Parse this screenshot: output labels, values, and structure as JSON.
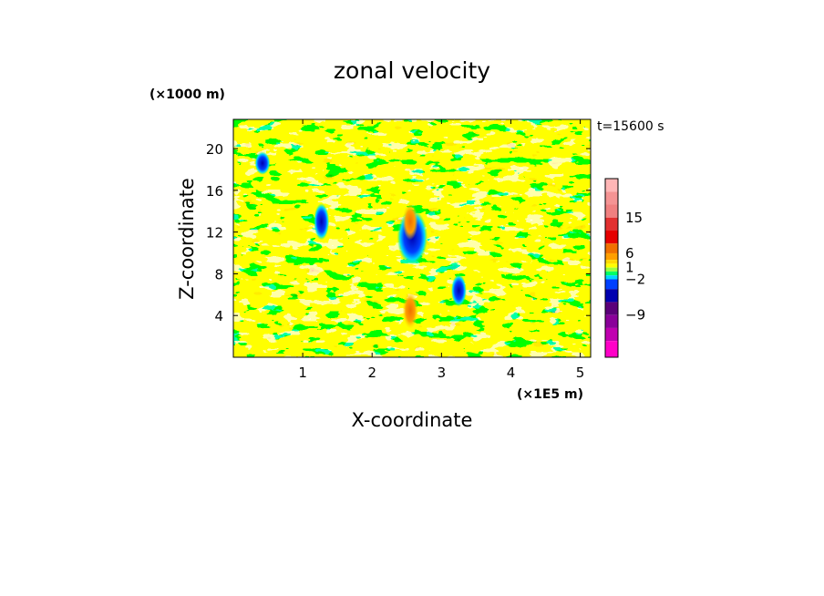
{
  "chart_data": {
    "type": "heatmap",
    "title": "zonal velocity",
    "xlabel": "X-coordinate",
    "ylabel": "Z-coordinate",
    "x_unit": "(×1E5 m)",
    "y_unit": "(×1000 m)",
    "time_label": "t=15600 s",
    "xlim": [
      0,
      5.15
    ],
    "ylim": [
      0,
      22.8
    ],
    "x_ticks": [
      1,
      2,
      3,
      4,
      5
    ],
    "y_ticks": [
      4,
      8,
      12,
      16,
      20
    ],
    "colorbar": {
      "labels": [
        "15",
        "6",
        "1",
        "−2",
        "−9"
      ],
      "label_values": [
        15,
        6,
        1,
        -2,
        -9
      ],
      "levels_top_to_bottom": [
        21,
        18,
        15,
        12,
        9,
        6,
        4,
        2,
        1,
        0,
        -1,
        -2,
        -3,
        -6,
        -9,
        -12,
        -15,
        -18
      ],
      "colors_top_to_bottom": [
        "#ffb6b6",
        "#f59494",
        "#f08080",
        "#e23030",
        "#e50000",
        "#f07000",
        "#ff9f00",
        "#ffd900",
        "#ffff00",
        "#9cff40",
        "#00ff66",
        "#00d6ff",
        "#0040ff",
        "#0000b0",
        "#5b007a",
        "#8a009a",
        "#c000b0",
        "#ff00c8"
      ]
    },
    "field": {
      "base": "#ffff00",
      "features": [
        {
          "name": "main-negative-jet",
          "x": 2.58,
          "z": 11.5,
          "sx": 0.1,
          "sz": 1.2,
          "value": -12
        },
        {
          "name": "lower-negative-core",
          "x": 3.25,
          "z": 6.4,
          "sx": 0.05,
          "sz": 0.7,
          "value": -12
        },
        {
          "name": "left-negative-core",
          "x": 1.27,
          "z": 13.0,
          "sx": 0.05,
          "sz": 0.8,
          "value": -12
        },
        {
          "name": "upper-left-core",
          "x": 0.42,
          "z": 18.6,
          "sx": 0.05,
          "sz": 0.5,
          "value": -12
        },
        {
          "name": "positive-anomaly",
          "x": 2.55,
          "z": 4.5,
          "sx": 0.05,
          "sz": 0.8,
          "value": 6
        },
        {
          "name": "positive-anomaly-2",
          "x": 2.55,
          "z": 13.0,
          "sx": 0.05,
          "sz": 0.8,
          "value": 6
        }
      ]
    }
  }
}
